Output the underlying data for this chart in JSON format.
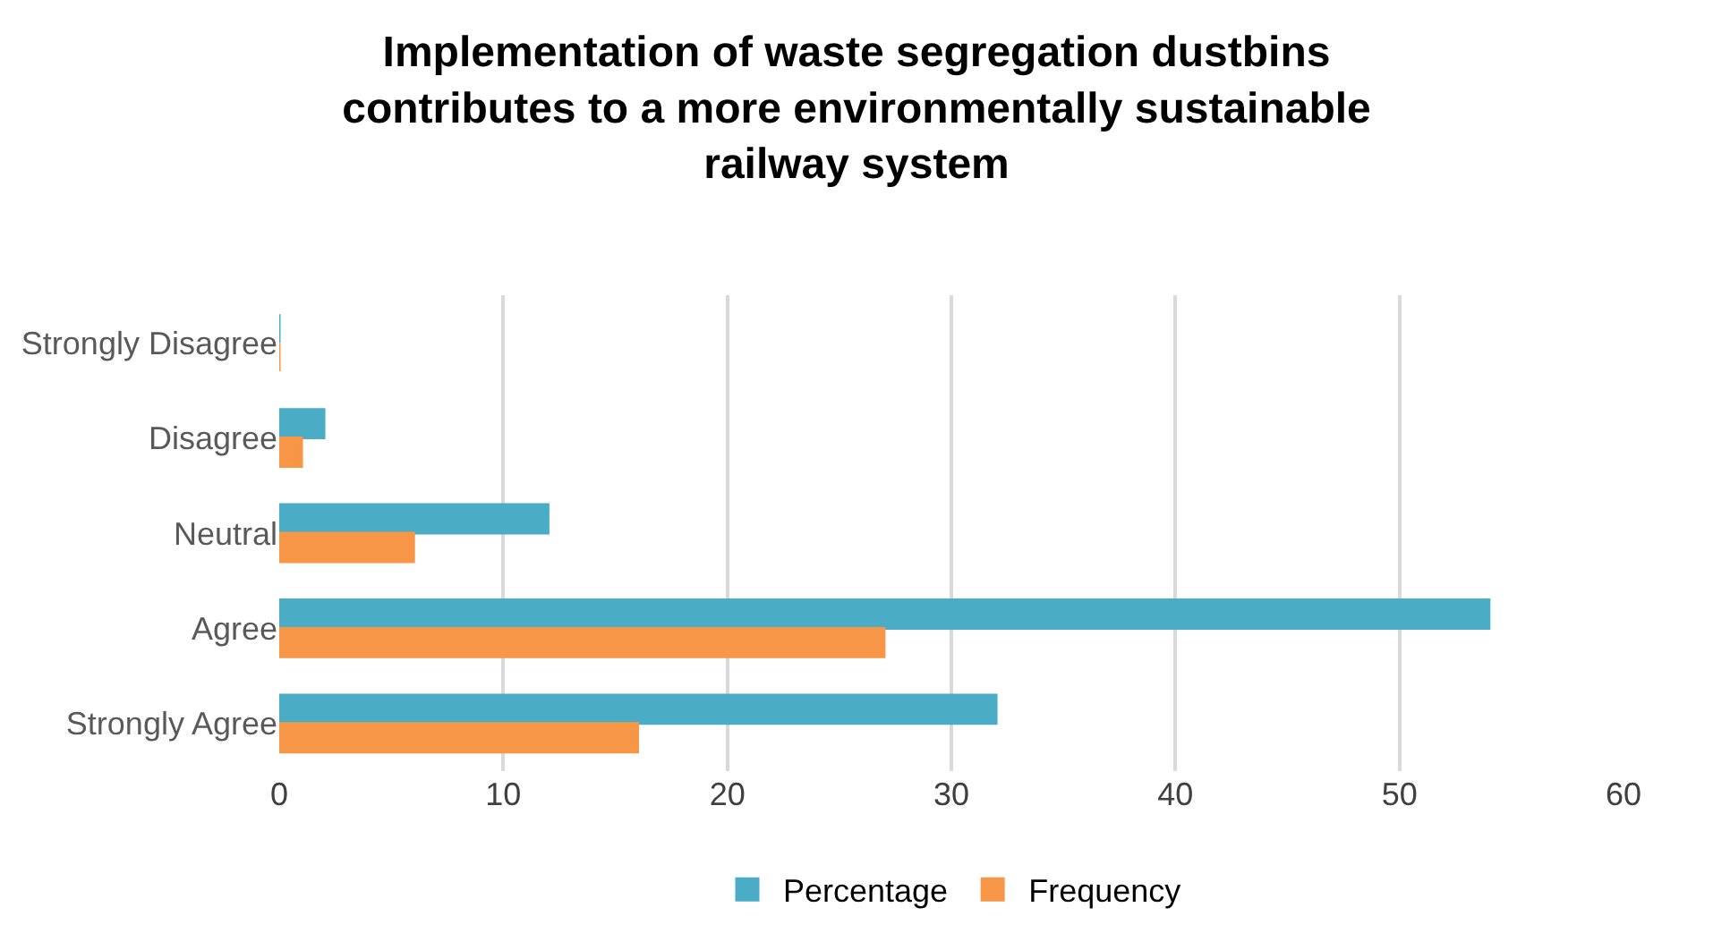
{
  "chart_data": {
    "type": "bar",
    "orientation": "horizontal",
    "title": "Implementation of waste segregation dustbins contributes to a more environmentally sustainable railway system",
    "categories": [
      "Strongly Disagree",
      "Disagree",
      "Neutral",
      "Agree",
      "Strongly Agree"
    ],
    "series": [
      {
        "name": "Percentage",
        "color": "#4bacc6",
        "values": [
          0,
          2,
          12,
          54,
          32
        ]
      },
      {
        "name": "Frequency",
        "color": "#f79646",
        "values": [
          0,
          1,
          6,
          27,
          16
        ]
      }
    ],
    "xlim": [
      0,
      60
    ],
    "xticks": [
      0,
      10,
      20,
      30,
      40,
      50,
      60
    ],
    "grid": "x",
    "legend": "bottom"
  }
}
